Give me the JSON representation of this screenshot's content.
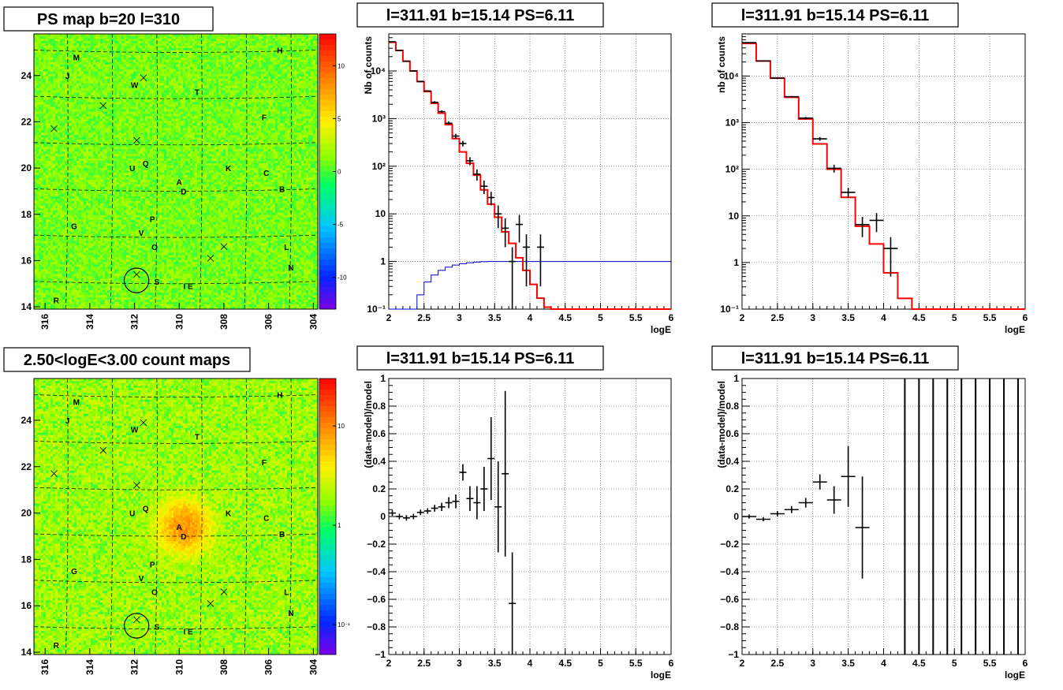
{
  "chart_data": [
    {
      "id": "ps-map",
      "type": "heatmap",
      "title": "PS map b=20 l=310",
      "x_ticks": [
        "316",
        "314",
        "312",
        "310",
        "308",
        "306",
        "304"
      ],
      "y_ticks": [
        "14",
        "16",
        "18",
        "20",
        "22",
        "24"
      ],
      "xlim": [
        316.5,
        303.8
      ],
      "ylim": [
        13.9,
        25.8
      ],
      "colorbar": {
        "min": -13,
        "max": 13,
        "ticks": [
          "10",
          "5",
          "0",
          "-5",
          "-10"
        ],
        "tick_values": [
          10,
          5,
          0,
          -5,
          -10
        ]
      },
      "background_level": 1.0,
      "sources": [
        {
          "label": "M",
          "l": 314.6,
          "b": 24.8
        },
        {
          "label": "H",
          "l": 305.5,
          "b": 25.1
        },
        {
          "label": "J",
          "l": 315.0,
          "b": 24.0
        },
        {
          "label": "W",
          "l": 312.0,
          "b": 23.6
        },
        {
          "label": "T",
          "l": 309.2,
          "b": 23.3
        },
        {
          "label": "F",
          "l": 306.2,
          "b": 22.2
        },
        {
          "label": "U",
          "l": 312.1,
          "b": 20.0
        },
        {
          "label": "Q",
          "l": 311.5,
          "b": 20.2
        },
        {
          "label": "K",
          "l": 307.8,
          "b": 20.0
        },
        {
          "label": "C",
          "l": 306.1,
          "b": 19.8
        },
        {
          "label": "A",
          "l": 310.0,
          "b": 19.4
        },
        {
          "label": "D",
          "l": 309.8,
          "b": 19.0
        },
        {
          "label": "B",
          "l": 305.4,
          "b": 19.1
        },
        {
          "label": "G",
          "l": 314.7,
          "b": 17.5
        },
        {
          "label": "P",
          "l": 311.2,
          "b": 17.8
        },
        {
          "label": "V",
          "l": 311.7,
          "b": 17.2
        },
        {
          "label": "O",
          "l": 311.1,
          "b": 16.6
        },
        {
          "label": "L",
          "l": 305.2,
          "b": 16.6
        },
        {
          "label": "N",
          "l": 305.0,
          "b": 15.7
        },
        {
          "label": "S",
          "l": 311.0,
          "b": 15.1
        },
        {
          "label": "I E",
          "l": 309.6,
          "b": 14.9
        },
        {
          "label": "R",
          "l": 315.5,
          "b": 14.3
        }
      ],
      "crosses": [
        [
          315.6,
          21.7
        ],
        [
          313.4,
          22.7
        ],
        [
          311.9,
          21.2
        ],
        [
          311.6,
          23.9
        ],
        [
          308.0,
          16.6
        ],
        [
          308.6,
          16.1
        ],
        [
          311.9,
          15.4
        ]
      ],
      "circle": {
        "l": 311.91,
        "b": 15.14,
        "r": 0.55
      }
    },
    {
      "id": "count-map",
      "type": "heatmap",
      "title": "2.50<logE<3.00 count maps",
      "x_ticks": [
        "316",
        "314",
        "312",
        "310",
        "308",
        "306",
        "304"
      ],
      "y_ticks": [
        "14",
        "16",
        "18",
        "20",
        "22",
        "24"
      ],
      "xlim": [
        316.5,
        303.8
      ],
      "ylim": [
        13.9,
        25.8
      ],
      "colorbar": {
        "log": true,
        "min": 0.05,
        "max": 30,
        "ticks": [
          "10",
          "1",
          "10⁻¹"
        ],
        "tick_values": [
          10,
          1,
          0.1
        ]
      },
      "background_level": 2.0,
      "hotspot": {
        "l": 309.8,
        "b": 19.4,
        "peak": 8
      },
      "sources_same_as": "ps-map"
    },
    {
      "id": "spectrum-1",
      "type": "line",
      "title": "l=311.91 b=15.14 PS=6.11",
      "xlabel": "logE",
      "ylabel": "Nb of counts",
      "log_y": true,
      "xlim": [
        2,
        6
      ],
      "ylim": [
        0.1,
        60000
      ],
      "x_ticks": [
        "2",
        "2.5",
        "3",
        "3.5",
        "4",
        "4.5",
        "5",
        "5.5",
        "6"
      ],
      "y_ticks": [
        "10⁻¹",
        "1",
        "10",
        "10²",
        "10³",
        "10⁴"
      ],
      "grid": true,
      "model_bins": {
        "edges": [
          2.0,
          2.1,
          2.2,
          2.3,
          2.4,
          2.5,
          2.6,
          2.7,
          2.8,
          2.9,
          3.0,
          3.1,
          3.2,
          3.3,
          3.4,
          3.5,
          3.6,
          3.7,
          3.8,
          3.9,
          4.0,
          4.1,
          4.2,
          4.3,
          6.0
        ],
        "values": [
          40000,
          27000,
          16000,
          10000,
          6000,
          3700,
          2100,
          1300,
          750,
          380,
          200,
          115,
          65,
          32,
          16,
          8.5,
          4.2,
          2.4,
          1.2,
          0.65,
          0.33,
          0.17,
          0.11,
          0.1
        ]
      },
      "data_points": [
        [
          2.05,
          41000,
          500
        ],
        [
          2.15,
          27000,
          400
        ],
        [
          2.25,
          16000,
          300
        ],
        [
          2.35,
          10000,
          250
        ],
        [
          2.45,
          6000,
          200
        ],
        [
          2.55,
          3800,
          150
        ],
        [
          2.65,
          2200,
          120
        ],
        [
          2.75,
          1400,
          90
        ],
        [
          2.85,
          800,
          70
        ],
        [
          2.95,
          430,
          50
        ],
        [
          3.05,
          300,
          40
        ],
        [
          3.15,
          130,
          25
        ],
        [
          3.25,
          68,
          18
        ],
        [
          3.35,
          38,
          12
        ],
        [
          3.45,
          22,
          7
        ],
        [
          3.55,
          10,
          5
        ],
        [
          3.65,
          5,
          3
        ],
        [
          3.75,
          1,
          0.99
        ],
        [
          3.85,
          6,
          3.5
        ],
        [
          3.95,
          2,
          1.7
        ],
        [
          4.15,
          2,
          1.7
        ]
      ],
      "efficiency_curve": [
        [
          2.0,
          0.1
        ],
        [
          2.3,
          0.1
        ],
        [
          2.4,
          0.2
        ],
        [
          2.5,
          0.37
        ],
        [
          2.6,
          0.52
        ],
        [
          2.7,
          0.65
        ],
        [
          2.8,
          0.76
        ],
        [
          2.9,
          0.84
        ],
        [
          3.0,
          0.9
        ],
        [
          3.1,
          0.94
        ],
        [
          3.2,
          0.97
        ],
        [
          3.3,
          0.99
        ],
        [
          3.4,
          1.0
        ],
        [
          6.0,
          1.0
        ]
      ],
      "series_colors": {
        "model": "#ff0000",
        "efficiency": "#0000cc",
        "data": "#000000"
      }
    },
    {
      "id": "spectrum-2",
      "type": "line",
      "title": "l=311.91 b=15.14 PS=6.11",
      "xlabel": "logE",
      "ylabel": "nb of counts",
      "log_y": true,
      "xlim": [
        2,
        6
      ],
      "ylim": [
        0.1,
        80000
      ],
      "x_ticks": [
        "2",
        "2.5",
        "3",
        "3.5",
        "4",
        "4.5",
        "5",
        "5.5",
        "6"
      ],
      "y_ticks": [
        "10⁻¹",
        "1",
        "10",
        "10²",
        "10³",
        "10⁴"
      ],
      "grid": true,
      "model_bins": {
        "edges": [
          2.0,
          2.2,
          2.4,
          2.6,
          2.8,
          3.0,
          3.2,
          3.4,
          3.6,
          3.8,
          4.0,
          4.2,
          4.4,
          6.0
        ],
        "values": [
          50000,
          21000,
          9000,
          3500,
          1200,
          350,
          100,
          25,
          6,
          2.5,
          0.6,
          0.17,
          0.1
        ]
      },
      "data_points": [
        [
          2.1,
          52000,
          500
        ],
        [
          2.3,
          21000,
          300
        ],
        [
          2.5,
          9000,
          200
        ],
        [
          2.7,
          3600,
          120
        ],
        [
          2.9,
          1250,
          70
        ],
        [
          3.1,
          450,
          40
        ],
        [
          3.3,
          105,
          20
        ],
        [
          3.5,
          32,
          8
        ],
        [
          3.7,
          6.5,
          3
        ],
        [
          3.9,
          8,
          3.5
        ],
        [
          4.1,
          2,
          1.5
        ]
      ],
      "series_colors": {
        "model": "#ff0000",
        "data": "#000000"
      }
    },
    {
      "id": "residual-1",
      "type": "scatter",
      "title": "l=311.91 b=15.14 PS=6.11",
      "xlabel": "logE",
      "ylabel": "(data-model)/model",
      "xlim": [
        2,
        6
      ],
      "ylim": [
        -1,
        1
      ],
      "x_ticks": [
        "2",
        "2.5",
        "3",
        "3.5",
        "4",
        "4.5",
        "5",
        "5.5",
        "6"
      ],
      "y_ticks": [
        "−1",
        "−0.8",
        "−0.6",
        "−0.4",
        "−0.2",
        "0",
        "0.2",
        "0.4",
        "0.6",
        "0.8",
        "1"
      ],
      "y_tick_values": [
        -1,
        -0.8,
        -0.6,
        -0.4,
        -0.2,
        0,
        0.2,
        0.4,
        0.6,
        0.8,
        1
      ],
      "grid": true,
      "bin_width": 0.1,
      "data_points": [
        [
          2.05,
          0.025,
          0.02
        ],
        [
          2.15,
          0.0,
          0.02
        ],
        [
          2.25,
          -0.01,
          0.02
        ],
        [
          2.35,
          0.0,
          0.02
        ],
        [
          2.45,
          0.03,
          0.02
        ],
        [
          2.55,
          0.04,
          0.02
        ],
        [
          2.65,
          0.06,
          0.025
        ],
        [
          2.75,
          0.07,
          0.03
        ],
        [
          2.85,
          0.1,
          0.04
        ],
        [
          2.95,
          0.11,
          0.05
        ],
        [
          3.05,
          0.32,
          0.06
        ],
        [
          3.15,
          0.13,
          0.09
        ],
        [
          3.25,
          0.1,
          0.12
        ],
        [
          3.35,
          0.2,
          0.16
        ],
        [
          3.45,
          0.42,
          0.3
        ],
        [
          3.55,
          0.07,
          0.33
        ],
        [
          3.65,
          0.31,
          0.6
        ],
        [
          3.75,
          -0.63,
          0.37
        ]
      ]
    },
    {
      "id": "residual-2",
      "type": "scatter",
      "title": "l=311.91 b=15.14 PS=6.11",
      "xlabel": "logE",
      "ylabel": "(data-model)/model",
      "xlim": [
        2,
        6
      ],
      "ylim": [
        -1,
        1
      ],
      "x_ticks": [
        "2",
        "2.5",
        "3",
        "3.5",
        "4",
        "4.5",
        "5",
        "5.5",
        "6"
      ],
      "y_ticks": [
        "−1",
        "−0.8",
        "−0.6",
        "−0.4",
        "−0.2",
        "0",
        "0.2",
        "0.4",
        "0.6",
        "0.8",
        "1"
      ],
      "y_tick_values": [
        -1,
        -0.8,
        -0.6,
        -0.4,
        -0.2,
        0,
        0.2,
        0.4,
        0.6,
        0.8,
        1
      ],
      "grid": true,
      "bin_width": 0.2,
      "data_points": [
        [
          2.1,
          0.0,
          0.015
        ],
        [
          2.3,
          -0.02,
          0.015
        ],
        [
          2.5,
          0.02,
          0.02
        ],
        [
          2.7,
          0.05,
          0.025
        ],
        [
          2.9,
          0.1,
          0.035
        ],
        [
          3.1,
          0.25,
          0.055
        ],
        [
          3.3,
          0.12,
          0.1
        ],
        [
          3.5,
          0.29,
          0.22
        ],
        [
          3.7,
          -0.08,
          0.37
        ]
      ],
      "full_range_bars_x": [
        4.3,
        4.5,
        4.7,
        4.9,
        5.1,
        5.3,
        5.5,
        5.7,
        5.9
      ]
    }
  ]
}
